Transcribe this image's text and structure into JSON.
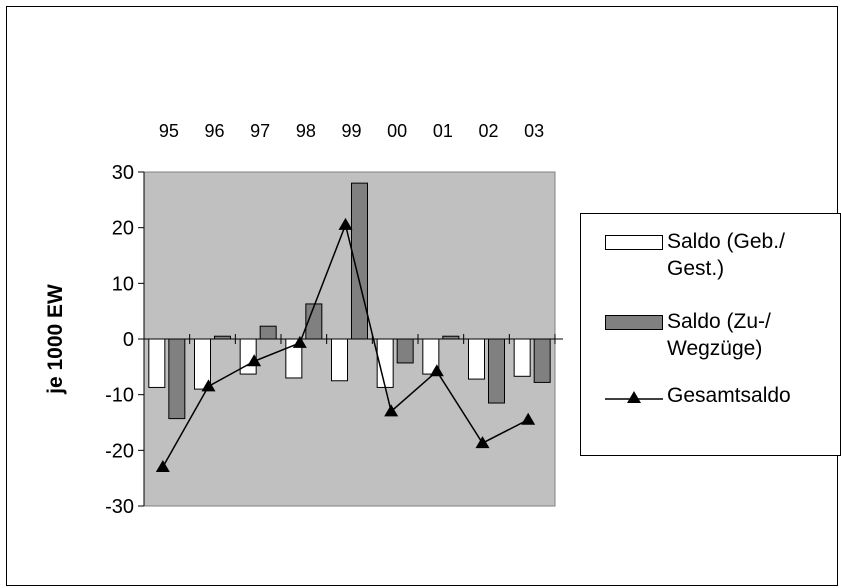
{
  "chart_data": {
    "type": "bar",
    "title": "",
    "xlabel": "",
    "ylabel": "je 1000 EW",
    "ylim": [
      -30,
      30
    ],
    "yticks": [
      30,
      20,
      10,
      0,
      -10,
      -20,
      -30
    ],
    "categories": [
      "95",
      "96",
      "97",
      "98",
      "99",
      "00",
      "01",
      "02",
      "03"
    ],
    "series": [
      {
        "name": "Saldo (Geb./ Gest.)",
        "kind": "bar",
        "color": "#ffffff",
        "values": [
          -8.7,
          -9.0,
          -6.3,
          -7.0,
          -7.5,
          -8.7,
          -6.3,
          -7.2,
          -6.7
        ]
      },
      {
        "name": "Saldo (Zu-/ Wegzüge)",
        "kind": "bar",
        "color": "#808080",
        "values": [
          -14.3,
          0.5,
          2.3,
          6.3,
          28.0,
          -4.3,
          0.5,
          -11.5,
          -7.8
        ]
      },
      {
        "name": "Gesamtsaldo",
        "kind": "line",
        "marker": "triangle",
        "color": "#000000",
        "values": [
          -23.0,
          -8.5,
          -4.0,
          -0.7,
          20.5,
          -13.0,
          -5.8,
          -18.7,
          -14.5
        ]
      }
    ],
    "plot_background": "#c0c0c0",
    "grid": false,
    "legend_position": "right",
    "legend": {
      "items": [
        {
          "line1": "Saldo (Geb./",
          "line2": "Gest.)"
        },
        {
          "line1": "Saldo (Zu-/",
          "line2": "Wegzüge)"
        },
        {
          "line1": "Gesamtsaldo",
          "line2": ""
        }
      ]
    }
  }
}
